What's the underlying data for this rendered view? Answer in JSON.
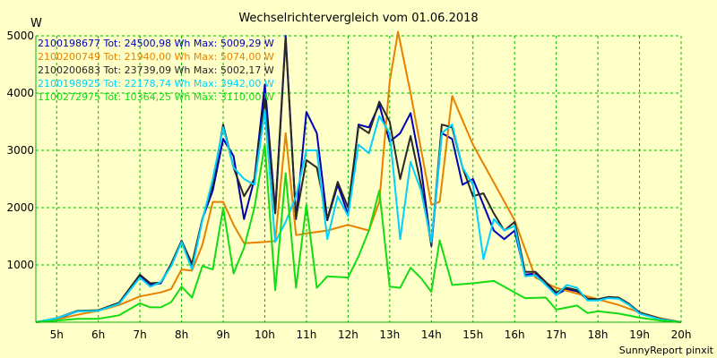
{
  "chart_data": {
    "type": "line",
    "title": "Wechselrichtervergleich vom 01.06.2018",
    "ylabel": "W",
    "footer": "SunnyReport pinxit",
    "xlim": [
      4.5,
      20.0
    ],
    "ylim": [
      0,
      5000
    ],
    "yticks": [
      1000,
      2000,
      3000,
      4000,
      5000
    ],
    "xticks": [
      {
        "value": 5,
        "label": "5h"
      },
      {
        "value": 6,
        "label": "6h"
      },
      {
        "value": 7,
        "label": "7h"
      },
      {
        "value": 8,
        "label": "8h"
      },
      {
        "value": 9,
        "label": "9h"
      },
      {
        "value": 10,
        "label": "10h"
      },
      {
        "value": 11,
        "label": "11h"
      },
      {
        "value": 12,
        "label": "12h"
      },
      {
        "value": 13,
        "label": "13h"
      },
      {
        "value": 14,
        "label": "14h"
      },
      {
        "value": 15,
        "label": "15h"
      },
      {
        "value": 16,
        "label": "16h"
      },
      {
        "value": 17,
        "label": "17h"
      },
      {
        "value": 18,
        "label": "18h"
      },
      {
        "value": 19,
        "label": "19h"
      },
      {
        "value": 20,
        "label": "20h"
      }
    ],
    "grid": true,
    "legend_position": "top-left",
    "series": [
      {
        "name": "2100198677 Tot: 24500,98 Wh Max: 5009,29 W",
        "color": "#0000b4",
        "points": [
          [
            4.5,
            0
          ],
          [
            5,
            60
          ],
          [
            5.5,
            190
          ],
          [
            6,
            200
          ],
          [
            6.5,
            330
          ],
          [
            7,
            810
          ],
          [
            7.25,
            650
          ],
          [
            7.5,
            680
          ],
          [
            7.75,
            1000
          ],
          [
            8,
            1420
          ],
          [
            8.25,
            1000
          ],
          [
            8.5,
            1800
          ],
          [
            8.75,
            2300
          ],
          [
            9,
            3200
          ],
          [
            9.25,
            2900
          ],
          [
            9.5,
            1800
          ],
          [
            9.75,
            2500
          ],
          [
            10,
            4150
          ],
          [
            10.25,
            1950
          ],
          [
            10.5,
            5000
          ],
          [
            10.75,
            1800
          ],
          [
            11,
            3670
          ],
          [
            11.25,
            3300
          ],
          [
            11.5,
            1780
          ],
          [
            11.75,
            2400
          ],
          [
            12,
            1880
          ],
          [
            12.25,
            3450
          ],
          [
            12.5,
            3400
          ],
          [
            12.75,
            3800
          ],
          [
            13,
            3150
          ],
          [
            13.25,
            3300
          ],
          [
            13.5,
            3650
          ],
          [
            13.75,
            2700
          ],
          [
            14,
            1330
          ],
          [
            14.25,
            3300
          ],
          [
            14.5,
            3200
          ],
          [
            14.75,
            2400
          ],
          [
            15,
            2500
          ],
          [
            15.25,
            2050
          ],
          [
            15.5,
            1600
          ],
          [
            15.75,
            1450
          ],
          [
            16,
            1600
          ],
          [
            16.25,
            830
          ],
          [
            16.5,
            850
          ],
          [
            16.75,
            680
          ],
          [
            17,
            480
          ],
          [
            17.25,
            580
          ],
          [
            17.5,
            540
          ],
          [
            17.75,
            400
          ],
          [
            18,
            390
          ],
          [
            18.25,
            430
          ],
          [
            18.5,
            420
          ],
          [
            18.75,
            310
          ],
          [
            19,
            160
          ],
          [
            19.5,
            60
          ],
          [
            20,
            0
          ]
        ]
      },
      {
        "name": "2100200749 Tot: 21940,00 Wh Max: 5074,00 W",
        "color": "#e68200",
        "points": [
          [
            4.5,
            0
          ],
          [
            5,
            50
          ],
          [
            5.5,
            130
          ],
          [
            6,
            200
          ],
          [
            6.5,
            300
          ],
          [
            7,
            450
          ],
          [
            7.5,
            520
          ],
          [
            7.75,
            580
          ],
          [
            8,
            920
          ],
          [
            8.25,
            900
          ],
          [
            8.5,
            1350
          ],
          [
            8.75,
            2100
          ],
          [
            9,
            2100
          ],
          [
            9.25,
            1700
          ],
          [
            9.5,
            1380
          ],
          [
            10,
            1400
          ],
          [
            10.25,
            1420
          ],
          [
            10.5,
            3300
          ],
          [
            10.75,
            1520
          ],
          [
            11,
            1550
          ],
          [
            11.5,
            1600
          ],
          [
            12,
            1700
          ],
          [
            12.5,
            1600
          ],
          [
            12.75,
            2100
          ],
          [
            13,
            4200
          ],
          [
            13.2,
            5070
          ],
          [
            13.5,
            4000
          ],
          [
            14,
            2050
          ],
          [
            14.2,
            2100
          ],
          [
            14.5,
            3950
          ],
          [
            15,
            3100
          ],
          [
            16,
            1780
          ],
          [
            16.5,
            780
          ],
          [
            17,
            600
          ],
          [
            17.5,
            500
          ],
          [
            18,
            400
          ],
          [
            18.5,
            300
          ],
          [
            19,
            170
          ],
          [
            19.5,
            70
          ],
          [
            20,
            0
          ]
        ]
      },
      {
        "name": "2100200683 Tot: 23739,09 Wh Max: 5002,17 W",
        "color": "#282828",
        "points": [
          [
            4.5,
            0
          ],
          [
            5,
            70
          ],
          [
            5.5,
            200
          ],
          [
            6,
            210
          ],
          [
            6.5,
            340
          ],
          [
            7,
            830
          ],
          [
            7.25,
            680
          ],
          [
            7.5,
            690
          ],
          [
            7.75,
            1020
          ],
          [
            8,
            1420
          ],
          [
            8.25,
            1020
          ],
          [
            8.5,
            1800
          ],
          [
            8.75,
            2400
          ],
          [
            9,
            3450
          ],
          [
            9.25,
            2700
          ],
          [
            9.5,
            2200
          ],
          [
            9.75,
            2500
          ],
          [
            10,
            3900
          ],
          [
            10.25,
            1900
          ],
          [
            10.5,
            4950
          ],
          [
            10.75,
            1820
          ],
          [
            11,
            2830
          ],
          [
            11.25,
            2700
          ],
          [
            11.5,
            1800
          ],
          [
            11.75,
            2450
          ],
          [
            12,
            2000
          ],
          [
            12.25,
            3420
          ],
          [
            12.5,
            3300
          ],
          [
            12.75,
            3850
          ],
          [
            13,
            3500
          ],
          [
            13.25,
            2500
          ],
          [
            13.5,
            3250
          ],
          [
            13.75,
            2400
          ],
          [
            14,
            1350
          ],
          [
            14.25,
            3450
          ],
          [
            14.5,
            3400
          ],
          [
            14.75,
            2700
          ],
          [
            15,
            2200
          ],
          [
            15.25,
            2250
          ],
          [
            15.5,
            1900
          ],
          [
            15.75,
            1600
          ],
          [
            16,
            1750
          ],
          [
            16.25,
            880
          ],
          [
            16.5,
            880
          ],
          [
            16.75,
            700
          ],
          [
            17,
            520
          ],
          [
            17.25,
            600
          ],
          [
            17.5,
            560
          ],
          [
            17.75,
            410
          ],
          [
            18,
            400
          ],
          [
            18.25,
            440
          ],
          [
            18.5,
            430
          ],
          [
            18.75,
            320
          ],
          [
            19,
            170
          ],
          [
            19.5,
            60
          ],
          [
            20,
            0
          ]
        ]
      },
      {
        "name": "2100198925 Tot: 22178,74 Wh Max: 3942,00 W",
        "color": "#00d2ff",
        "points": [
          [
            4.5,
            0
          ],
          [
            5,
            70
          ],
          [
            5.5,
            190
          ],
          [
            6,
            200
          ],
          [
            6.5,
            320
          ],
          [
            7,
            780
          ],
          [
            7.25,
            620
          ],
          [
            7.5,
            700
          ],
          [
            7.75,
            980
          ],
          [
            8,
            1400
          ],
          [
            8.25,
            920
          ],
          [
            8.5,
            1780
          ],
          [
            8.75,
            2500
          ],
          [
            9,
            3400
          ],
          [
            9.25,
            2700
          ],
          [
            9.5,
            2500
          ],
          [
            9.75,
            2400
          ],
          [
            10,
            3700
          ],
          [
            10.25,
            1400
          ],
          [
            10.5,
            1750
          ],
          [
            10.75,
            2200
          ],
          [
            11,
            3000
          ],
          [
            11.25,
            3000
          ],
          [
            11.5,
            1450
          ],
          [
            11.75,
            2200
          ],
          [
            12,
            1850
          ],
          [
            12.25,
            3100
          ],
          [
            12.5,
            2950
          ],
          [
            12.75,
            3600
          ],
          [
            13,
            3300
          ],
          [
            13.25,
            1450
          ],
          [
            13.5,
            2800
          ],
          [
            13.75,
            2300
          ],
          [
            14,
            1400
          ],
          [
            14.25,
            3300
          ],
          [
            14.5,
            3450
          ],
          [
            14.75,
            2700
          ],
          [
            15,
            2400
          ],
          [
            15.25,
            1100
          ],
          [
            15.5,
            1800
          ],
          [
            15.75,
            1600
          ],
          [
            16,
            1680
          ],
          [
            16.25,
            800
          ],
          [
            16.5,
            820
          ],
          [
            16.75,
            650
          ],
          [
            17,
            470
          ],
          [
            17.25,
            650
          ],
          [
            17.5,
            600
          ],
          [
            17.75,
            380
          ],
          [
            18,
            380
          ],
          [
            18.25,
            420
          ],
          [
            18.5,
            410
          ],
          [
            18.75,
            300
          ],
          [
            19,
            150
          ],
          [
            19.5,
            50
          ],
          [
            20,
            0
          ]
        ]
      },
      {
        "name": "1100272975 Tot: 10364,25 Wh Max: 3110,00 W",
        "color": "#14dc14",
        "points": [
          [
            4.5,
            0
          ],
          [
            5,
            30
          ],
          [
            5.5,
            60
          ],
          [
            6,
            60
          ],
          [
            6.5,
            120
          ],
          [
            7,
            330
          ],
          [
            7.25,
            260
          ],
          [
            7.5,
            260
          ],
          [
            7.75,
            350
          ],
          [
            8,
            620
          ],
          [
            8.25,
            430
          ],
          [
            8.5,
            980
          ],
          [
            8.75,
            920
          ],
          [
            9,
            2000
          ],
          [
            9.25,
            850
          ],
          [
            9.5,
            1300
          ],
          [
            9.75,
            2000
          ],
          [
            10,
            3100
          ],
          [
            10.25,
            560
          ],
          [
            10.5,
            2600
          ],
          [
            10.75,
            600
          ],
          [
            11,
            2050
          ],
          [
            11.25,
            600
          ],
          [
            11.5,
            800
          ],
          [
            12,
            780
          ],
          [
            12.25,
            1150
          ],
          [
            12.5,
            1600
          ],
          [
            12.75,
            2300
          ],
          [
            13,
            620
          ],
          [
            13.25,
            600
          ],
          [
            13.5,
            950
          ],
          [
            13.75,
            770
          ],
          [
            14,
            530
          ],
          [
            14.2,
            1430
          ],
          [
            14.5,
            650
          ],
          [
            15,
            680
          ],
          [
            15.5,
            720
          ],
          [
            16,
            520
          ],
          [
            16.25,
            420
          ],
          [
            16.75,
            430
          ],
          [
            17,
            220
          ],
          [
            17.5,
            290
          ],
          [
            17.75,
            160
          ],
          [
            18,
            190
          ],
          [
            18.5,
            150
          ],
          [
            19,
            80
          ],
          [
            19.5,
            30
          ],
          [
            20,
            0
          ]
        ]
      }
    ]
  }
}
